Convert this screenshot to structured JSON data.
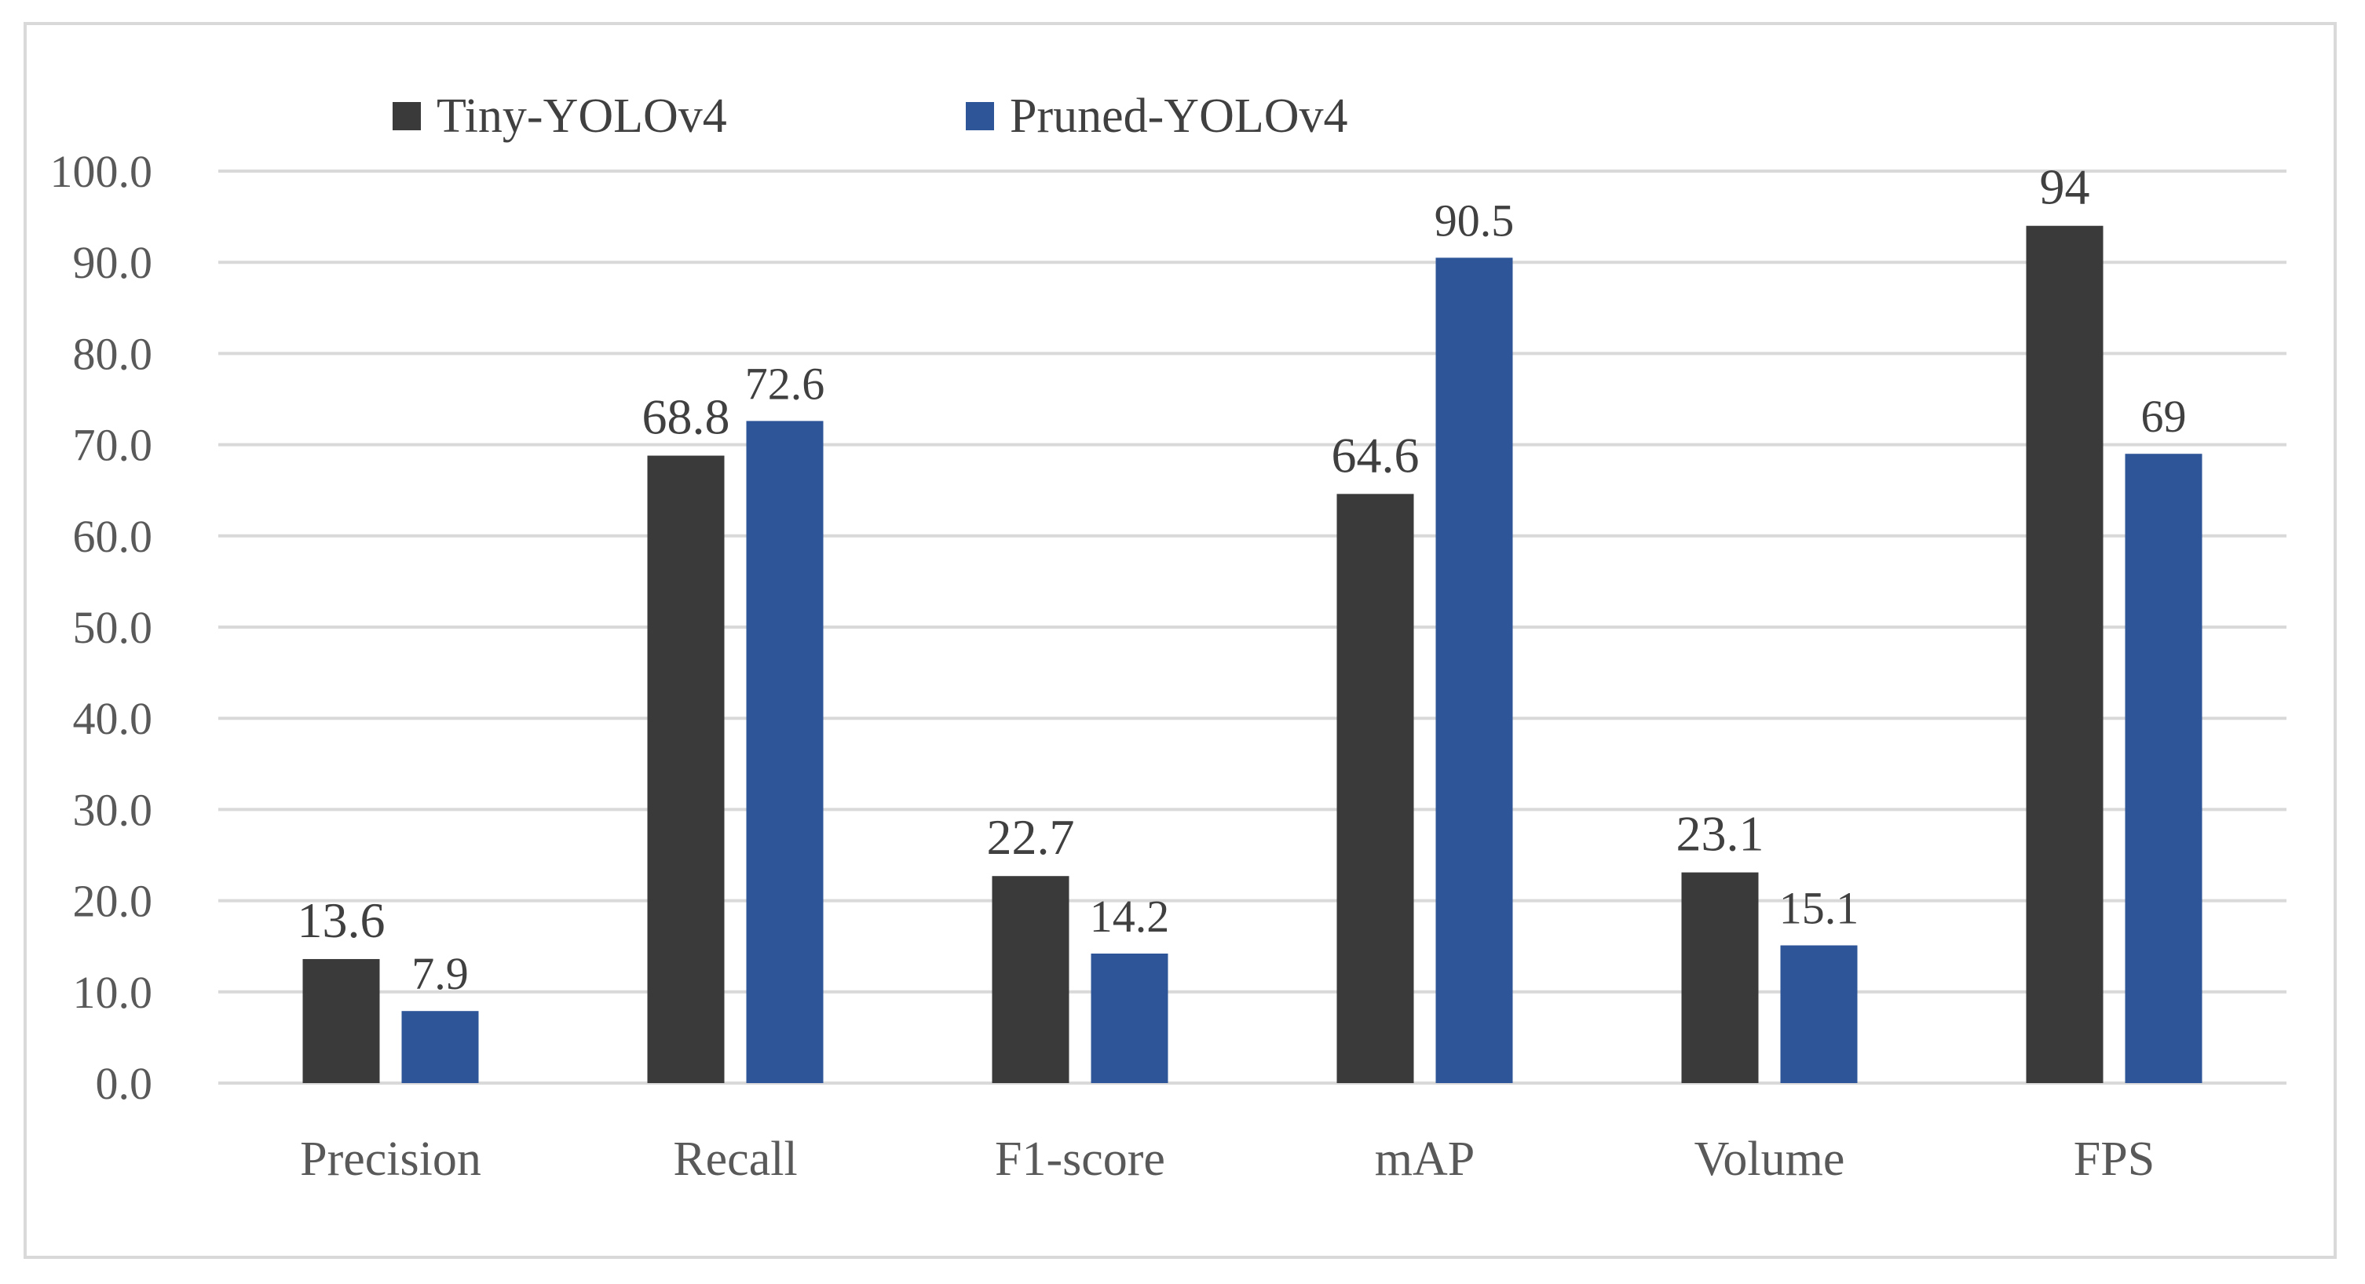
{
  "chart_data": {
    "type": "bar",
    "title": "",
    "xlabel": "",
    "ylabel": "",
    "categories": [
      "Precision",
      "Recall",
      "F1-score",
      "mAP",
      "Volume",
      "FPS"
    ],
    "series": [
      {
        "name": "Tiny-YOLOv4",
        "color": "#3a3a3a",
        "values": [
          13.6,
          68.8,
          22.7,
          64.6,
          23.1,
          94
        ],
        "labels": [
          "13.6",
          "68.8",
          "22.7",
          "64.6",
          "23.1",
          "94"
        ]
      },
      {
        "name": "Pruned-YOLOv4",
        "color": "#2e5597",
        "values": [
          7.9,
          72.6,
          14.2,
          90.5,
          15.1,
          69
        ],
        "labels": [
          "7.9",
          "72.6",
          "14.2",
          "90.5",
          "15.1",
          "69"
        ]
      }
    ],
    "ylim": [
      0,
      100
    ],
    "yticks": [
      "0.0",
      "10.0",
      "20.0",
      "30.0",
      "40.0",
      "50.0",
      "60.0",
      "70.0",
      "80.0",
      "90.0",
      "100.0"
    ],
    "grid": true,
    "legend_position": "top-left",
    "gridline_color": "#d9d9d9"
  }
}
